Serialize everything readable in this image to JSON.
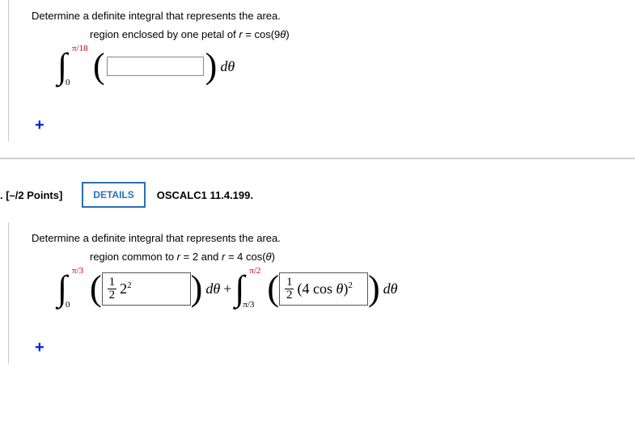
{
  "q1": {
    "prompt": "Determine a definite integral that represents the area.",
    "sub_html": "region enclosed by one petal of <span class='ital'>r</span> = cos(9<span class='ital'>θ</span>)",
    "upper": "π/18",
    "lower": "0",
    "dvar": "dθ"
  },
  "expand_glyph": "+",
  "q2header": {
    "num_pts": ". [–/2 Points]",
    "details": "DETAILS",
    "ref": "OSCALC1 11.4.199."
  },
  "q2": {
    "prompt": "Determine a definite integral that represents the area.",
    "sub_html": "region common to <span class='ital'>r</span> = 2 and <span class='ital'>r</span> = 4 cos(<span class='ital'>θ</span>)",
    "int1": {
      "upper": "π/3",
      "lower": "0",
      "expr_html": "<span class='frac'><span class='num'>1</span><span class='den'>2</span></span><span class='expr-text'>2<span class='sup'>2</span></span>",
      "d": "dθ"
    },
    "plus": "+",
    "int2": {
      "upper": "π/2",
      "lower": "π/3",
      "expr_html": "<span class='frac'><span class='num'>1</span><span class='den'>2</span></span><span class='expr-text'>(4 cos <span class='ital'>θ</span>)<span class='sup'>2</span></span>",
      "d": "dθ"
    }
  }
}
